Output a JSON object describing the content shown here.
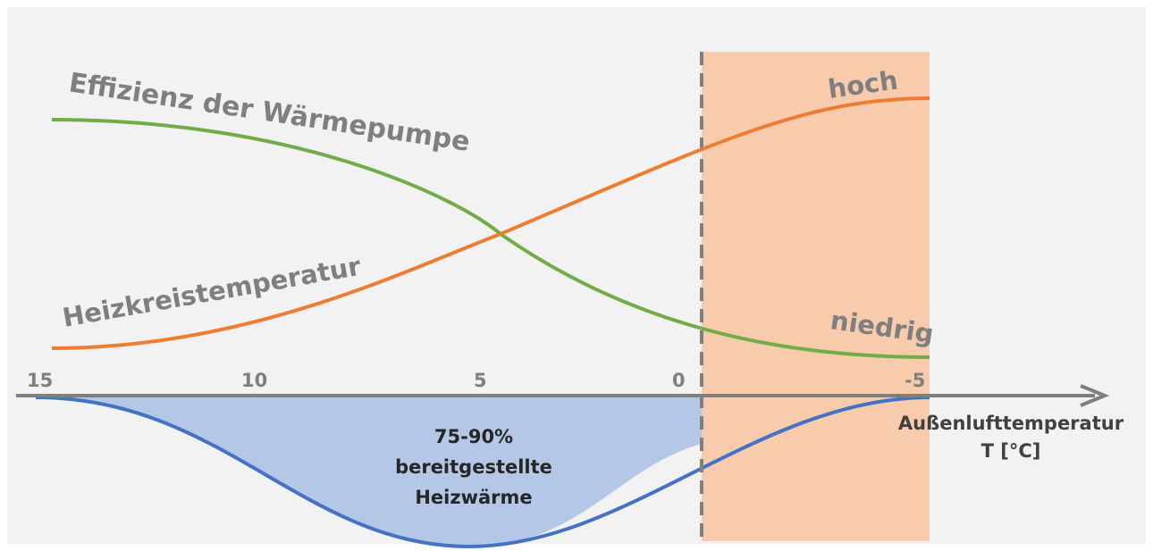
{
  "diagram": {
    "efficiency_curve_label": "Effizienz der Wärmepumpe",
    "heating_temp_curve_label": "Heizkreistemperatur",
    "high_label": "hoch",
    "low_label": "niedrig",
    "area_label_lines": [
      "75-90%",
      "bereitgestellte",
      "Heizwärme"
    ],
    "axis_label_lines": [
      "Außenlufttemperatur",
      "T [°C]"
    ],
    "axis_ticks": [
      "15",
      "10",
      "5",
      "0",
      "-5"
    ],
    "colors": {
      "background": "#f2f2f2",
      "efficiency_line": "#70ad47",
      "heating_temp_line": "#ed7d31",
      "heat_demand_line": "#4472c4",
      "heat_area_fill": "#b4c7e7",
      "cold_zone_fill": "#f8cbad",
      "axis": "#7f7f7f",
      "label_text": "#7f7f7f",
      "dark_text": "#404040"
    }
  }
}
